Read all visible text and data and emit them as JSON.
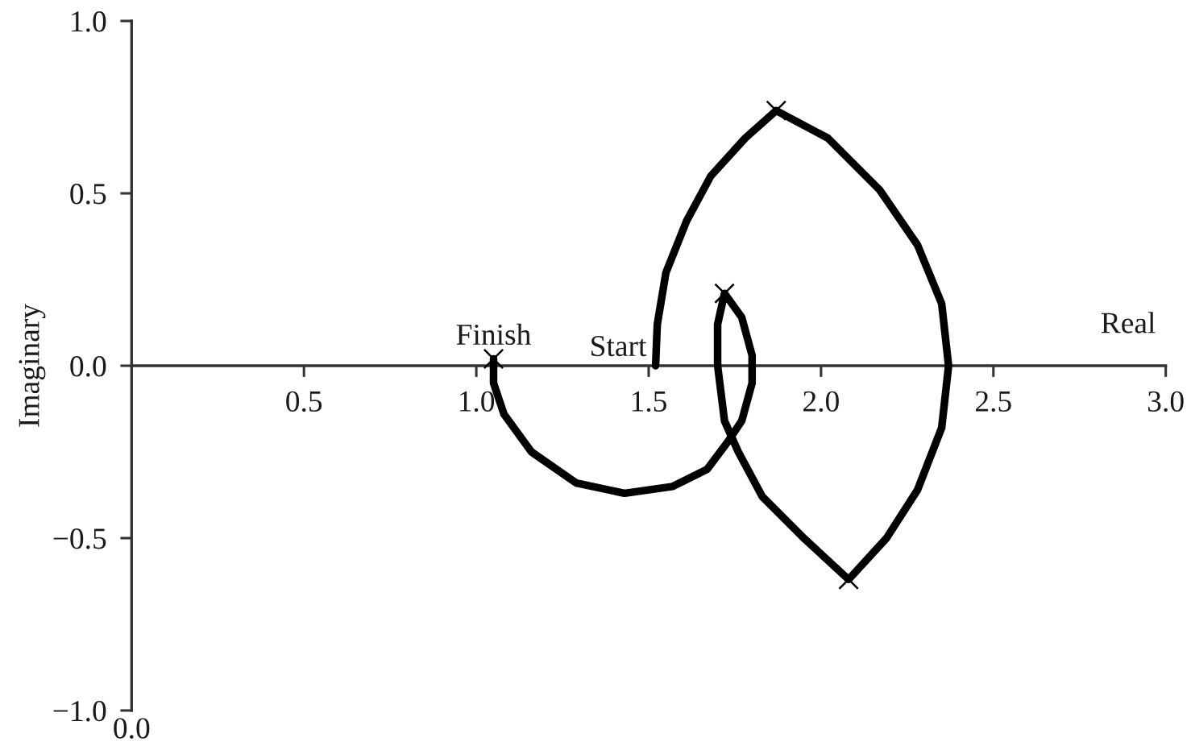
{
  "chart_data": {
    "type": "line",
    "xlabel": "Real",
    "ylabel": "Imaginary",
    "annotations": [
      {
        "text": "Finish",
        "x": 1.05,
        "y": 0.02
      },
      {
        "text": "Start",
        "x": 1.52,
        "y": 0
      },
      "0.0"
    ],
    "xlim": [
      0,
      3
    ],
    "ylim": [
      -1,
      1
    ],
    "xticks": [
      0.5,
      {
        "value": 1,
        "label": "1.0"
      },
      1.5,
      {
        "value": 2,
        "label": "2.0"
      },
      2.5,
      {
        "value": 3,
        "label": "3.0"
      }
    ],
    "yticks": [
      {
        "value": -1,
        "label": "−1.0"
      },
      {
        "value": -0.5,
        "label": "−0.5"
      },
      {
        "value": 0,
        "label": "0.0"
      },
      0.5,
      {
        "value": 1,
        "label": "1.0"
      }
    ],
    "series": [
      {
        "color": "#000000",
        "line_style": "solid",
        "x": [
          1.52,
          1.525,
          1.55,
          1.61,
          1.68,
          1.78,
          1.87,
          2.02,
          2.17,
          2.28,
          2.35,
          2.37,
          2.35,
          2.28,
          2.19,
          2.08,
          1.95,
          1.83,
          1.76,
          1.72,
          1.7,
          1.7,
          1.72,
          1.77,
          1.8,
          1.8,
          1.77,
          1.73,
          1.67,
          1.57,
          1.43,
          1.29,
          1.16,
          1.08,
          1.05,
          1.05
        ],
        "values": [
          0.0,
          0.12,
          0.27,
          0.42,
          0.55,
          0.66,
          0.74,
          0.66,
          0.51,
          0.35,
          0.18,
          0.0,
          -0.18,
          -0.36,
          -0.5,
          -0.62,
          -0.5,
          -0.38,
          -0.25,
          -0.16,
          0.0,
          0.12,
          0.21,
          0.14,
          0.03,
          -0.05,
          -0.16,
          -0.22,
          -0.3,
          -0.35,
          -0.37,
          -0.34,
          -0.25,
          -0.14,
          -0.05,
          0.02
        ]
      },
      {
        "type": "scatter",
        "color": "#000000",
        "marker": "cross",
        "x": [
          1.05,
          1.72,
          1.87,
          2.08
        ],
        "values": [
          0.02,
          0.21,
          0.74,
          -0.62
        ]
      }
    ]
  }
}
